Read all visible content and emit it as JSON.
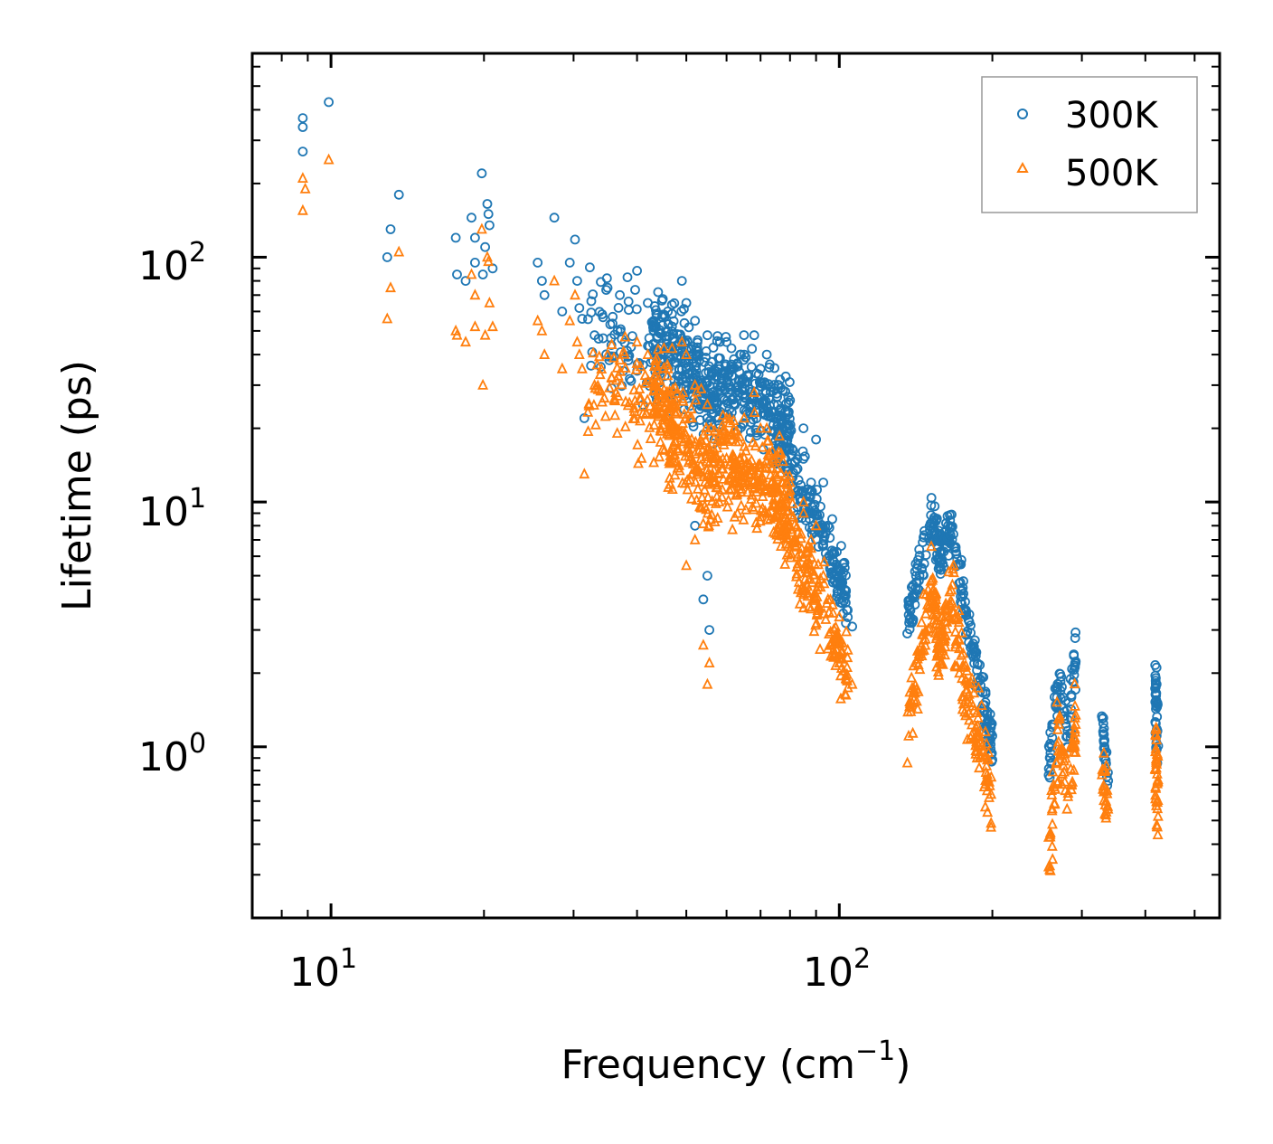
{
  "chart_data": {
    "type": "scatter",
    "title": "",
    "xlabel": {
      "text": "Frequency (cm",
      "sup": "−1",
      "suffix": ")"
    },
    "ylabel": "Lifetime (ps)",
    "xscale": "log",
    "yscale": "log",
    "xlim": [
      7,
      560
    ],
    "ylim": [
      0.2,
      680
    ],
    "x_ticks": [
      {
        "value": 10,
        "base": "10",
        "exp": "1"
      },
      {
        "value": 100,
        "base": "10",
        "exp": "2"
      }
    ],
    "y_ticks": [
      {
        "value": 1,
        "base": "10",
        "exp": "0"
      },
      {
        "value": 10,
        "base": "10",
        "exp": "1"
      },
      {
        "value": 100,
        "base": "10",
        "exp": "2"
      }
    ],
    "grid": false,
    "legend_position": "top-right",
    "series": [
      {
        "name": "300K",
        "marker": "circle",
        "color": "#1f77b4",
        "points": [
          [
            8.8,
            370
          ],
          [
            8.8,
            340
          ],
          [
            8.8,
            270
          ],
          [
            9.9,
            430
          ],
          [
            12.9,
            100
          ],
          [
            13.1,
            130
          ],
          [
            13.6,
            180
          ],
          [
            17.6,
            120
          ],
          [
            17.7,
            85
          ],
          [
            18.4,
            80
          ],
          [
            18.9,
            145
          ],
          [
            19.2,
            120
          ],
          [
            19.2,
            95
          ],
          [
            19.8,
            220
          ],
          [
            20.3,
            165
          ],
          [
            20.4,
            150
          ],
          [
            20.5,
            135
          ],
          [
            20.8,
            90
          ],
          [
            20.1,
            110
          ],
          [
            19.9,
            85
          ],
          [
            25.5,
            95
          ],
          [
            26,
            80
          ],
          [
            26.3,
            70
          ],
          [
            27.5,
            145
          ],
          [
            28.5,
            60
          ],
          [
            29.5,
            95
          ],
          [
            30.2,
            118
          ],
          [
            30.5,
            80
          ],
          [
            30.8,
            62
          ],
          [
            31.2,
            56
          ],
          [
            31.5,
            22
          ],
          [
            33,
            48
          ],
          [
            35,
            75
          ],
          [
            37,
            70
          ],
          [
            40,
            88
          ],
          [
            42,
            65
          ],
          [
            44,
            72
          ],
          [
            46,
            60
          ],
          [
            49,
            80
          ],
          [
            50,
            65
          ],
          [
            52,
            55
          ],
          [
            55,
            48
          ],
          [
            60,
            45
          ],
          [
            65,
            40
          ],
          [
            68,
            48
          ],
          [
            72,
            40
          ],
          [
            76,
            30
          ],
          [
            80,
            26
          ],
          [
            85,
            20
          ],
          [
            90,
            18
          ],
          [
            93,
            12
          ],
          [
            95,
            8
          ],
          [
            98,
            5
          ],
          [
            100,
            4
          ],
          [
            103,
            3.2
          ],
          [
            106,
            3.1
          ],
          [
            50,
            35
          ],
          [
            55,
            5
          ],
          [
            55.5,
            3
          ],
          [
            54,
            4
          ],
          [
            52,
            8
          ],
          [
            58,
            20
          ],
          [
            62,
            25
          ],
          [
            70,
            35
          ],
          [
            85,
            15
          ],
          [
            88,
            12
          ]
        ],
        "clusters": [
          {
            "x": [
              43,
              58
            ],
            "y_center": [
              45,
              28
            ],
            "spread": 0.28,
            "count": 240
          },
          {
            "x": [
              58,
              80
            ],
            "y_center": [
              32,
              22
            ],
            "spread": 0.25,
            "count": 220
          },
          {
            "x": [
              74,
              104
            ],
            "y_center": [
              20,
              4.2
            ],
            "spread": 0.2,
            "count": 200
          },
          {
            "x": [
              32,
              45
            ],
            "y_center": [
              50,
              42
            ],
            "spread": 0.3,
            "count": 80
          },
          {
            "x": [
              136,
              152
            ],
            "y_center": [
              3.2,
              8.8
            ],
            "spread": 0.14,
            "count": 60
          },
          {
            "x": [
              152,
              158
            ],
            "y_center": [
              8.8,
              6
            ],
            "spread": 0.12,
            "count": 40
          },
          {
            "x": [
              158,
              168
            ],
            "y_center": [
              6,
              8.8
            ],
            "spread": 0.14,
            "count": 45
          },
          {
            "x": [
              168,
              200
            ],
            "y_center": [
              6.5,
              1
            ],
            "spread": 0.16,
            "count": 110
          },
          {
            "x": [
              258,
              272
            ],
            "y_center": [
              0.8,
              2.2
            ],
            "spread": 0.15,
            "count": 35
          },
          {
            "x": [
              272,
              282
            ],
            "y_center": [
              1.8,
              1.1
            ],
            "spread": 0.15,
            "count": 20
          },
          {
            "x": [
              285,
              292
            ],
            "y_center": [
              1.3,
              2.5
            ],
            "spread": 0.2,
            "count": 25
          },
          {
            "x": [
              328,
              338
            ],
            "y_center": [
              1.4,
              0.7
            ],
            "spread": 0.12,
            "count": 25
          },
          {
            "x": [
              418,
              424
            ],
            "y_center": [
              1.8,
              1.0
            ],
            "spread": 0.25,
            "count": 40
          }
        ]
      },
      {
        "name": "500K",
        "marker": "triangle",
        "color": "#ff7f0e",
        "points": [
          [
            8.8,
            210
          ],
          [
            8.9,
            190
          ],
          [
            8.8,
            155
          ],
          [
            9.9,
            250
          ],
          [
            12.9,
            56
          ],
          [
            13.1,
            75
          ],
          [
            13.6,
            105
          ],
          [
            17.6,
            50
          ],
          [
            17.7,
            48
          ],
          [
            18.4,
            45
          ],
          [
            18.9,
            85
          ],
          [
            19.2,
            70
          ],
          [
            19.2,
            52
          ],
          [
            19.8,
            130
          ],
          [
            20.3,
            100
          ],
          [
            20.4,
            96
          ],
          [
            20.5,
            65
          ],
          [
            20.8,
            52
          ],
          [
            20.1,
            48
          ],
          [
            19.9,
            30
          ],
          [
            25.5,
            55
          ],
          [
            26,
            50
          ],
          [
            26.3,
            40
          ],
          [
            27.5,
            80
          ],
          [
            28.5,
            35
          ],
          [
            29.5,
            55
          ],
          [
            30.2,
            70
          ],
          [
            30.5,
            45
          ],
          [
            30.8,
            40
          ],
          [
            31.2,
            35
          ],
          [
            31.5,
            13
          ],
          [
            33,
            30
          ],
          [
            35,
            40
          ],
          [
            37,
            38
          ],
          [
            40,
            45
          ],
          [
            42,
            40
          ],
          [
            44,
            42
          ],
          [
            46,
            35
          ],
          [
            49,
            45
          ],
          [
            50,
            40
          ],
          [
            52,
            30
          ],
          [
            55,
            25
          ],
          [
            60,
            22
          ],
          [
            65,
            22
          ],
          [
            68,
            28
          ],
          [
            72,
            20
          ],
          [
            76,
            16
          ],
          [
            80,
            12
          ],
          [
            85,
            9
          ],
          [
            90,
            8
          ],
          [
            93,
            5
          ],
          [
            95,
            4
          ],
          [
            98,
            2.8
          ],
          [
            100,
            2.2
          ],
          [
            103,
            1.9
          ],
          [
            106,
            1.8
          ],
          [
            55,
            1.8
          ],
          [
            55.5,
            2.2
          ],
          [
            54,
            2.6
          ],
          [
            50,
            5.5
          ],
          [
            52,
            7
          ],
          [
            58,
            10
          ],
          [
            62,
            14
          ],
          [
            70,
            20
          ],
          [
            85,
            10
          ],
          [
            88,
            7
          ]
        ],
        "clusters": [
          {
            "x": [
              43,
              58
            ],
            "y_center": [
              26,
              12
            ],
            "spread": 0.3,
            "count": 240
          },
          {
            "x": [
              58,
              80
            ],
            "y_center": [
              15,
              10
            ],
            "spread": 0.28,
            "count": 220
          },
          {
            "x": [
              74,
              104
            ],
            "y_center": [
              10,
              2.1
            ],
            "spread": 0.22,
            "count": 200
          },
          {
            "x": [
              32,
              45
            ],
            "y_center": [
              30,
              25
            ],
            "spread": 0.3,
            "count": 80
          },
          {
            "x": [
              136,
              152
            ],
            "y_center": [
              1.2,
              4.5
            ],
            "spread": 0.22,
            "count": 60
          },
          {
            "x": [
              152,
              158
            ],
            "y_center": [
              4.2,
              2.4
            ],
            "spread": 0.2,
            "count": 40
          },
          {
            "x": [
              158,
              168
            ],
            "y_center": [
              2.5,
              5
            ],
            "spread": 0.2,
            "count": 45
          },
          {
            "x": [
              168,
              200
            ],
            "y_center": [
              3,
              0.6
            ],
            "spread": 0.22,
            "count": 110
          },
          {
            "x": [
              258,
              272
            ],
            "y_center": [
              0.35,
              1.2
            ],
            "spread": 0.25,
            "count": 35
          },
          {
            "x": [
              272,
              282
            ],
            "y_center": [
              1.0,
              0.6
            ],
            "spread": 0.2,
            "count": 20
          },
          {
            "x": [
              285,
              292
            ],
            "y_center": [
              0.7,
              1.4
            ],
            "spread": 0.25,
            "count": 25
          },
          {
            "x": [
              328,
              338
            ],
            "y_center": [
              0.8,
              0.6
            ],
            "spread": 0.15,
            "count": 25
          },
          {
            "x": [
              418,
              424
            ],
            "y_center": [
              1.0,
              0.6
            ],
            "spread": 0.35,
            "count": 40
          }
        ]
      }
    ]
  }
}
